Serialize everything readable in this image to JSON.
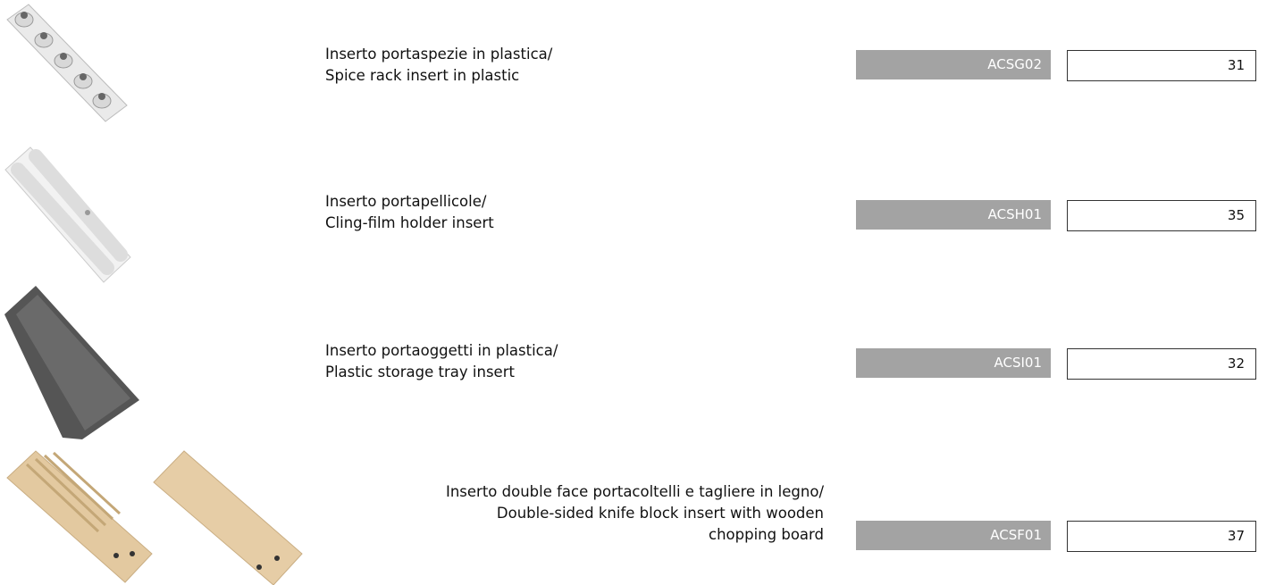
{
  "items": [
    {
      "description": [
        "Inserto portaspezie in plastica/",
        "Spice rack insert in plastic"
      ],
      "code": "ACSG02",
      "price": 31
    },
    {
      "description": [
        "Inserto portapellicole/",
        "Cling-film holder insert"
      ],
      "code": "ACSH01",
      "price": 35
    },
    {
      "description": [
        "Inserto portaoggetti in plastica/",
        "Plastic storage tray insert"
      ],
      "code": "ACSI01",
      "price": 32
    },
    {
      "description": [
        "Inserto double face portacoltelli e tagliere in legno/",
        "Double-sided knife block insert with wooden",
        "chopping board"
      ],
      "code": "ACSF01",
      "price": 37
    }
  ]
}
